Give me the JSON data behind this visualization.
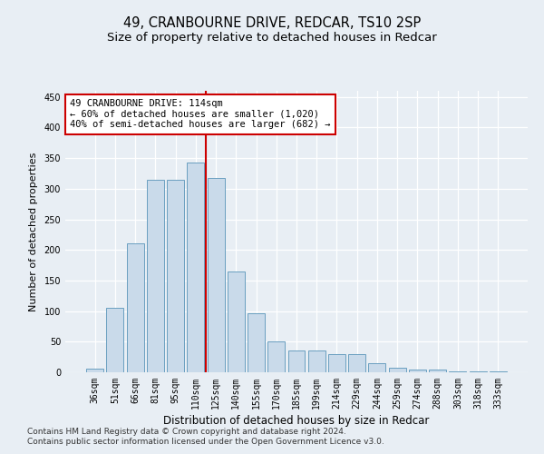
{
  "title1": "49, CRANBOURNE DRIVE, REDCAR, TS10 2SP",
  "title2": "Size of property relative to detached houses in Redcar",
  "xlabel": "Distribution of detached houses by size in Redcar",
  "ylabel": "Number of detached properties",
  "categories": [
    "36sqm",
    "51sqm",
    "66sqm",
    "81sqm",
    "95sqm",
    "110sqm",
    "125sqm",
    "140sqm",
    "155sqm",
    "170sqm",
    "185sqm",
    "199sqm",
    "214sqm",
    "229sqm",
    "244sqm",
    "259sqm",
    "274sqm",
    "288sqm",
    "303sqm",
    "318sqm",
    "333sqm"
  ],
  "values": [
    6,
    105,
    210,
    315,
    315,
    343,
    318,
    165,
    97,
    50,
    35,
    35,
    29,
    29,
    15,
    7,
    5,
    5,
    1,
    1,
    1
  ],
  "bar_color": "#c9daea",
  "bar_edge_color": "#6a9fc0",
  "vline_color": "#cc0000",
  "vline_pos": 5.5,
  "annotation_line1": "49 CRANBOURNE DRIVE: 114sqm",
  "annotation_line2": "← 60% of detached houses are smaller (1,020)",
  "annotation_line3": "40% of semi-detached houses are larger (682) →",
  "annotation_box_facecolor": "#ffffff",
  "annotation_box_edgecolor": "#cc0000",
  "ylim": [
    0,
    460
  ],
  "yticks": [
    0,
    50,
    100,
    150,
    200,
    250,
    300,
    350,
    400,
    450
  ],
  "background_color": "#e8eef4",
  "plot_bg_color": "#e8eef4",
  "grid_color": "#ffffff",
  "footnote1": "Contains HM Land Registry data © Crown copyright and database right 2024.",
  "footnote2": "Contains public sector information licensed under the Open Government Licence v3.0.",
  "title1_fontsize": 10.5,
  "title2_fontsize": 9.5,
  "xlabel_fontsize": 8.5,
  "ylabel_fontsize": 8,
  "tick_fontsize": 7,
  "annot_fontsize": 7.5,
  "footnote_fontsize": 6.5
}
